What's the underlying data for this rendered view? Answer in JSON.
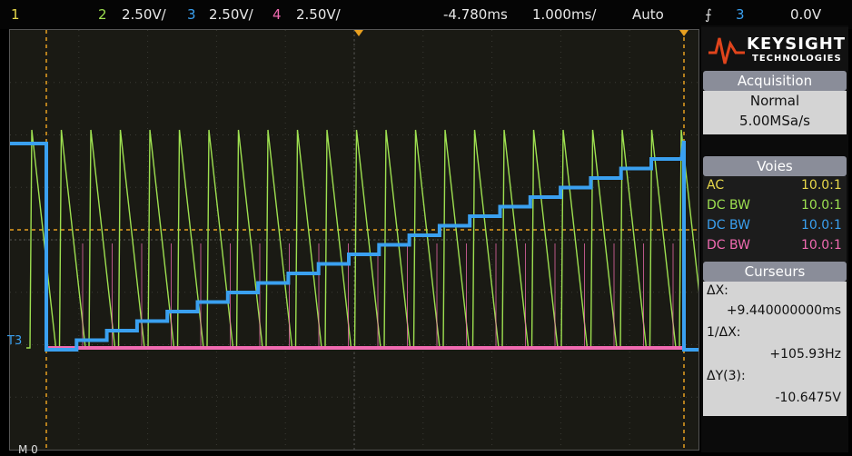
{
  "top": {
    "ch1_num": "1",
    "ch2_num": "2",
    "ch2_scale": "2.50V/",
    "ch3_num": "3",
    "ch3_scale": "2.50V/",
    "ch4_num": "4",
    "ch4_scale": "2.50V/",
    "delay": "-4.780ms",
    "timebase": "1.000ms/",
    "mode": "Auto",
    "trig_source": "3",
    "trig_level": "0.0V"
  },
  "colors": {
    "ch1": "#e8d94a",
    "ch2": "#9ee050",
    "ch3": "#3aa0f0",
    "ch4": "#f06ab0",
    "cursor": "#e8a020"
  },
  "brand": {
    "name": "KEYSIGHT",
    "sub": "TECHNOLOGIES"
  },
  "acquisition": {
    "title": "Acquisition",
    "mode": "Normal",
    "rate": "5.00MSa/s"
  },
  "voies": {
    "title": "Voies",
    "channels": [
      {
        "coupling": "AC",
        "probe": "10.0:1"
      },
      {
        "coupling": "DC BW",
        "probe": "10.0:1"
      },
      {
        "coupling": "DC BW",
        "probe": "10.0:1"
      },
      {
        "coupling": "DC BW",
        "probe": "10.0:1"
      }
    ]
  },
  "cursors": {
    "title": "Curseurs",
    "dx_label": "ΔX:",
    "dx_value": "+9.440000000ms",
    "inv_label": "1/ΔX:",
    "inv_value": "+105.93Hz",
    "dy_label": "ΔY(3):",
    "dy_value": "-10.6475V"
  },
  "marker": {
    "ch3_label": "3",
    "ground": "T"
  },
  "bottom_text": "M  0"
}
